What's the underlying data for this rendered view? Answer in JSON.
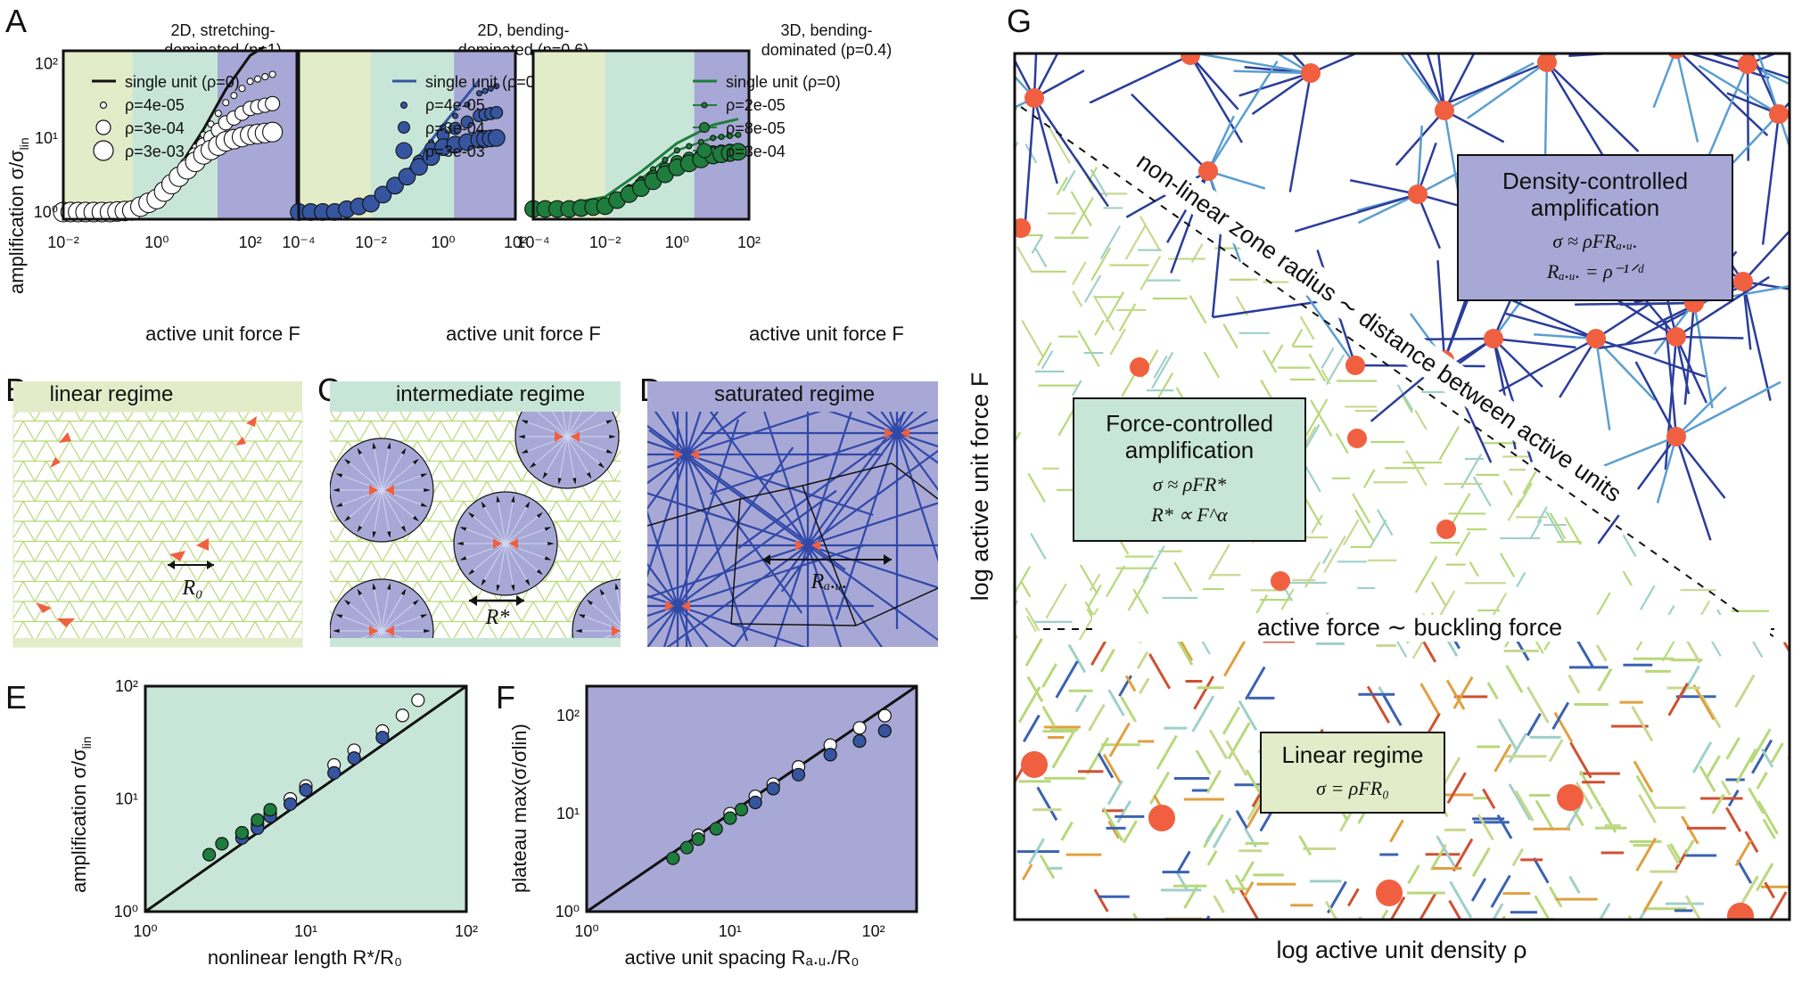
{
  "colors": {
    "linear": "#e2ecc8",
    "intermediate": "#c8e6d8",
    "saturated": "#a8a8d6",
    "white_markers": "#ffffff",
    "blue_markers": "#3655a0",
    "green_markers": "#1e7d3c",
    "lattice": "#b8d87a",
    "active_unit": "#f06040",
    "dark_blue_fiber": "#2a3d9a"
  },
  "panel_letters": {
    "a": "A",
    "b": "B",
    "c": "C",
    "d": "D",
    "e": "E",
    "f": "F",
    "g": "G"
  },
  "panel_a": {
    "ylabel": "amplification σ/σ",
    "ylabel_sub": "lin",
    "xlabel": "active unit force F",
    "subplots": [
      {
        "title_line1": "2D, stretching-",
        "title_line2": "dominated (p=1)",
        "legend": [
          "single unit (ρ=0)",
          "ρ=4e-05",
          "ρ=3e-04",
          "ρ=3e-03"
        ],
        "xticks": [
          "10⁻²",
          "10⁰",
          "10²"
        ],
        "yticks": [
          "10⁰",
          "10¹",
          "10²"
        ]
      },
      {
        "title_line1": "2D, bending-",
        "title_line2": "dominated (p=0.6)",
        "legend": [
          "single unit (ρ=0)",
          "ρ=4e-05",
          "ρ=3e-04",
          "ρ=3e-03"
        ],
        "xticks": [
          "10⁻⁴",
          "10⁻²",
          "10⁰",
          "10²"
        ]
      },
      {
        "title_line1": "3D, bending-",
        "title_line2": "dominated (p=0.4)",
        "legend": [
          "single unit (ρ=0)",
          "ρ=2e-05",
          "ρ=8e-05",
          "ρ=3e-04"
        ],
        "xticks": [
          "10⁻⁴",
          "10⁻²",
          "10⁰",
          "10²"
        ]
      }
    ]
  },
  "panel_b": {
    "title": "linear regime",
    "label": "R₀"
  },
  "panel_c": {
    "title": "intermediate regime",
    "label": "R*"
  },
  "panel_d": {
    "title": "saturated regime",
    "label": "Rₐ.ᵤ."
  },
  "panel_e": {
    "ylabel": "amplification σ/σ",
    "ylabel_sub": "lin",
    "xlabel": "nonlinear length R*/R₀",
    "xticks": [
      "10⁰",
      "10¹",
      "10²"
    ],
    "yticks": [
      "10⁰",
      "10¹",
      "10²"
    ]
  },
  "panel_f": {
    "ylabel": "plateau max(σ/σlin)",
    "xlabel": "active unit spacing Rₐ.ᵤ./R₀",
    "xticks": [
      "10⁰",
      "10¹",
      "10²"
    ],
    "yticks": [
      "10⁰",
      "10¹",
      "10²"
    ]
  },
  "panel_g": {
    "xlabel": "log active unit density ρ",
    "ylabel": "log active unit force F",
    "diagonal_label": "non-linear zone radius ∼ distance between active units",
    "horizontal_label": "active force ∼ buckling force",
    "box_density": {
      "line1": "Density-controlled",
      "line2": "amplification",
      "eq1": "σ ≈ ρFRₐ.ᵤ.",
      "eq2": "Rₐ.ᵤ. = ρ⁻¹ᐟᵈ"
    },
    "box_force": {
      "line1": "Force-controlled",
      "line2": "amplification",
      "eq1": "σ ≈ ρFR*",
      "eq2": "R* ∝ F^α"
    },
    "box_linear": {
      "line1": "Linear regime",
      "eq1": "σ = ρFR₀"
    }
  },
  "chart_data": [
    {
      "panel": "A1",
      "type": "scatter",
      "xscale": "log",
      "yscale": "log",
      "xlim": [
        0.01,
        1000
      ],
      "ylim": [
        0.8,
        150
      ],
      "regime_bounds": [
        0.3,
        20
      ],
      "series": [
        {
          "name": "single unit (ρ=0)",
          "kind": "line",
          "x": [
            0.01,
            0.1,
            0.3,
            1,
            3,
            10,
            30,
            100,
            200
          ],
          "y": [
            1,
            1,
            1.05,
            1.6,
            4,
            13,
            45,
            130,
            170
          ]
        },
        {
          "name": "ρ=4e-05",
          "kind": "marker",
          "size": 1,
          "x": [
            0.01,
            0.1,
            0.3,
            1,
            3,
            10,
            30,
            100,
            300
          ],
          "y": [
            1,
            1,
            1.05,
            1.5,
            3.5,
            11,
            30,
            58,
            72
          ]
        },
        {
          "name": "ρ=3e-04",
          "kind": "marker",
          "size": 2,
          "x": [
            0.01,
            0.1,
            0.3,
            1,
            3,
            10,
            30,
            100,
            300
          ],
          "y": [
            1,
            1,
            1.05,
            1.5,
            3.2,
            8,
            16,
            25,
            29
          ]
        },
        {
          "name": "ρ=3e-03",
          "kind": "marker",
          "size": 3,
          "x": [
            0.01,
            0.03,
            0.1,
            0.3,
            1,
            3,
            10,
            30,
            100,
            300
          ],
          "y": [
            1,
            1,
            1,
            1.05,
            1.5,
            3,
            6,
            9,
            11,
            12
          ]
        }
      ]
    },
    {
      "panel": "A2",
      "type": "scatter",
      "xscale": "log",
      "yscale": "log",
      "xlim": [
        0.0001,
        100
      ],
      "ylim": [
        0.8,
        150
      ],
      "regime_bounds": [
        0.01,
        2
      ],
      "series": [
        {
          "name": "single unit (ρ=0)",
          "kind": "line",
          "x": [
            0.0001,
            0.001,
            0.01,
            0.1,
            1,
            10
          ],
          "y": [
            1,
            1,
            1.3,
            3.5,
            15,
            60
          ]
        },
        {
          "name": "ρ=4e-05",
          "kind": "marker",
          "size": 1,
          "x": [
            0.0001,
            0.001,
            0.01,
            0.1,
            1,
            10,
            30
          ],
          "y": [
            1,
            1,
            1.3,
            3.4,
            14,
            40,
            50
          ]
        },
        {
          "name": "ρ=3e-04",
          "kind": "marker",
          "size": 2,
          "x": [
            0.0001,
            0.001,
            0.01,
            0.1,
            1,
            10,
            30
          ],
          "y": [
            1,
            1,
            1.3,
            3.2,
            11,
            20,
            22
          ]
        },
        {
          "name": "ρ=3e-03",
          "kind": "marker",
          "size": 3,
          "x": [
            0.0001,
            0.001,
            0.01,
            0.1,
            1,
            10,
            30
          ],
          "y": [
            1,
            1,
            1.3,
            3,
            7.5,
            9.5,
            10
          ]
        }
      ]
    },
    {
      "panel": "A3",
      "type": "scatter",
      "xscale": "log",
      "yscale": "log",
      "xlim": [
        0.0001,
        100
      ],
      "ylim": [
        0.8,
        150
      ],
      "regime_bounds": [
        0.01,
        3
      ],
      "series": [
        {
          "name": "single unit (ρ=0)",
          "kind": "line",
          "x": [
            0.001,
            0.01,
            0.1,
            1,
            10,
            50
          ],
          "y": [
            1.3,
            1.6,
            3.5,
            8.5,
            15,
            18
          ]
        },
        {
          "name": "ρ=2e-05",
          "kind": "line-marker",
          "size": 1,
          "x": [
            0.0001,
            0.001,
            0.01,
            0.1,
            1,
            10,
            50
          ],
          "y": [
            1.1,
            1.1,
            1.3,
            2.8,
            6.8,
            10,
            11
          ]
        },
        {
          "name": "ρ=8e-05",
          "kind": "line-marker",
          "size": 2,
          "x": [
            0.0001,
            0.001,
            0.01,
            0.1,
            1,
            10,
            50
          ],
          "y": [
            1.1,
            1.1,
            1.2,
            2.4,
            4.8,
            6.5,
            7
          ]
        },
        {
          "name": "ρ=3e-04",
          "kind": "line-marker",
          "size": 3,
          "x": [
            0.0001,
            0.001,
            0.01,
            0.1,
            1,
            10,
            50
          ],
          "y": [
            1.1,
            1.1,
            1.2,
            2.1,
            4,
            5.8,
            6.5
          ]
        }
      ]
    },
    {
      "panel": "E",
      "type": "scatter",
      "xscale": "log",
      "yscale": "log",
      "xlim": [
        1,
        100
      ],
      "ylim": [
        1,
        100
      ],
      "reference_line": "y=x",
      "series": [
        {
          "name": "2D stretching",
          "x": [
            4,
            5,
            6,
            8,
            10,
            15,
            20,
            30,
            40,
            50
          ],
          "y": [
            5,
            6,
            7.5,
            10,
            13,
            20,
            27,
            40,
            55,
            75
          ]
        },
        {
          "name": "2D bending",
          "x": [
            4,
            5,
            6,
            8,
            10,
            15,
            20,
            30
          ],
          "y": [
            4.5,
            5.5,
            7,
            9,
            12,
            17,
            23,
            35
          ]
        },
        {
          "name": "3D bending",
          "x": [
            2.5,
            3,
            4,
            5,
            6
          ],
          "y": [
            3.2,
            4,
            5,
            6.5,
            8
          ]
        }
      ]
    },
    {
      "panel": "F",
      "type": "scatter",
      "xscale": "log",
      "yscale": "log",
      "xlim": [
        1,
        200
      ],
      "ylim": [
        1,
        200
      ],
      "reference_line": "y=x",
      "series": [
        {
          "name": "2D stretching",
          "x": [
            6,
            10,
            15,
            20,
            30,
            50,
            80,
            120
          ],
          "y": [
            6,
            10,
            15,
            20,
            30,
            50,
            75,
            100
          ]
        },
        {
          "name": "2D bending",
          "x": [
            15,
            20,
            30,
            50,
            80,
            120
          ],
          "y": [
            13,
            18,
            25,
            40,
            55,
            70
          ]
        },
        {
          "name": "3D bending",
          "x": [
            4,
            5,
            6,
            8,
            10,
            12
          ],
          "y": [
            3.5,
            4.5,
            5.5,
            7,
            9,
            11
          ]
        }
      ]
    }
  ]
}
